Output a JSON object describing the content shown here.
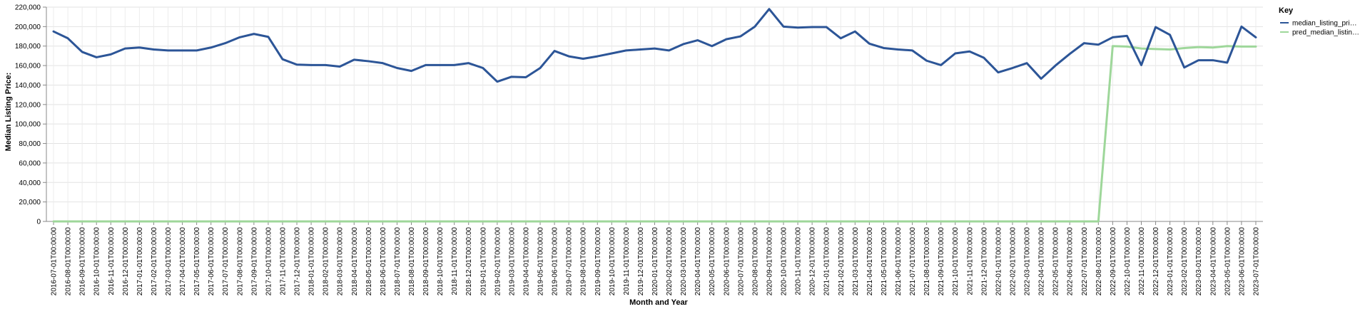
{
  "chart_data": {
    "type": "line",
    "title": "",
    "xlabel": "Month and Year",
    "ylabel": "Median Listing Price:",
    "ylim": [
      0,
      220000
    ],
    "yticks": [
      0,
      20000,
      40000,
      60000,
      80000,
      100000,
      120000,
      140000,
      160000,
      180000,
      200000,
      220000
    ],
    "grid": true,
    "legend": {
      "title": "Key",
      "position": "right"
    },
    "x": [
      "2016-07-01T00:00:00",
      "2016-08-01T00:00:00",
      "2016-09-01T00:00:00",
      "2016-10-01T00:00:00",
      "2016-11-01T00:00:00",
      "2016-12-01T00:00:00",
      "2017-01-01T00:00:00",
      "2017-02-01T00:00:00",
      "2017-03-01T00:00:00",
      "2017-04-01T00:00:00",
      "2017-05-01T00:00:00",
      "2017-06-01T00:00:00",
      "2017-07-01T00:00:00",
      "2017-08-01T00:00:00",
      "2017-09-01T00:00:00",
      "2017-10-01T00:00:00",
      "2017-11-01T00:00:00",
      "2017-12-01T00:00:00",
      "2018-01-01T00:00:00",
      "2018-02-01T00:00:00",
      "2018-03-01T00:00:00",
      "2018-04-01T00:00:00",
      "2018-05-01T00:00:00",
      "2018-06-01T00:00:00",
      "2018-07-01T00:00:00",
      "2018-08-01T00:00:00",
      "2018-09-01T00:00:00",
      "2018-10-01T00:00:00",
      "2018-11-01T00:00:00",
      "2018-12-01T00:00:00",
      "2019-01-01T00:00:00",
      "2019-02-01T00:00:00",
      "2019-03-01T00:00:00",
      "2019-04-01T00:00:00",
      "2019-05-01T00:00:00",
      "2019-06-01T00:00:00",
      "2019-07-01T00:00:00",
      "2019-08-01T00:00:00",
      "2019-09-01T00:00:00",
      "2019-10-01T00:00:00",
      "2019-11-01T00:00:00",
      "2019-12-01T00:00:00",
      "2020-01-01T00:00:00",
      "2020-02-01T00:00:00",
      "2020-03-01T00:00:00",
      "2020-04-01T00:00:00",
      "2020-05-01T00:00:00",
      "2020-06-01T00:00:00",
      "2020-07-01T00:00:00",
      "2020-08-01T00:00:00",
      "2020-09-01T00:00:00",
      "2020-10-01T00:00:00",
      "2020-11-01T00:00:00",
      "2020-12-01T00:00:00",
      "2021-01-01T00:00:00",
      "2021-02-01T00:00:00",
      "2021-03-01T00:00:00",
      "2021-04-01T00:00:00",
      "2021-05-01T00:00:00",
      "2021-06-01T00:00:00",
      "2021-07-01T00:00:00",
      "2021-08-01T00:00:00",
      "2021-09-01T00:00:00",
      "2021-10-01T00:00:00",
      "2021-11-01T00:00:00",
      "2021-12-01T00:00:00",
      "2022-01-01T00:00:00",
      "2022-02-01T00:00:00",
      "2022-03-01T00:00:00",
      "2022-04-01T00:00:00",
      "2022-05-01T00:00:00",
      "2022-06-01T00:00:00",
      "2022-07-01T00:00:00",
      "2022-08-01T00:00:00",
      "2022-09-01T00:00:00",
      "2022-10-01T00:00:00",
      "2022-11-01T00:00:00",
      "2022-12-01T00:00:00",
      "2023-01-01T00:00:00",
      "2023-02-01T00:00:00",
      "2023-03-01T00:00:00",
      "2023-04-01T00:00:00",
      "2023-05-01T00:00:00",
      "2023-06-01T00:00:00",
      "2023-07-01T00:00:00"
    ],
    "series": [
      {
        "name": "median_listing_pri…",
        "color": "#2c5597",
        "values": [
          195000,
          188000,
          174000,
          168500,
          171500,
          177500,
          178500,
          176500,
          175500,
          175500,
          175500,
          178500,
          183000,
          189000,
          192500,
          189500,
          166500,
          161000,
          160500,
          160500,
          159000,
          166000,
          164500,
          162500,
          157500,
          154500,
          160500,
          160500,
          160500,
          162500,
          157500,
          143500,
          148500,
          148000,
          157500,
          175000,
          169500,
          167000,
          169500,
          172500,
          175500,
          176500,
          177500,
          175500,
          182000,
          186000,
          180000,
          187000,
          190000,
          200000,
          218000,
          200000,
          199000,
          199500,
          199500,
          188000,
          195000,
          182500,
          178000,
          176500,
          175500,
          165000,
          160500,
          172500,
          174500,
          168000,
          153000,
          157500,
          162500,
          146500,
          160000,
          172000,
          183000,
          181500,
          189000,
          190500,
          160500,
          199500,
          191500,
          158000,
          165500,
          165500,
          163000,
          200000,
          189000
        ]
      },
      {
        "name": "pred_median_listin…",
        "color": "#9ed79a",
        "values": [
          0,
          0,
          0,
          0,
          0,
          0,
          0,
          0,
          0,
          0,
          0,
          0,
          0,
          0,
          0,
          0,
          0,
          0,
          0,
          0,
          0,
          0,
          0,
          0,
          0,
          0,
          0,
          0,
          0,
          0,
          0,
          0,
          0,
          0,
          0,
          0,
          0,
          0,
          0,
          0,
          0,
          0,
          0,
          0,
          0,
          0,
          0,
          0,
          0,
          0,
          0,
          0,
          0,
          0,
          0,
          0,
          0,
          0,
          0,
          0,
          0,
          0,
          0,
          0,
          0,
          0,
          0,
          0,
          0,
          0,
          0,
          0,
          0,
          0,
          180000,
          179500,
          177500,
          177000,
          176500,
          178000,
          179000,
          178500,
          180000,
          179500,
          179500
        ]
      }
    ]
  }
}
